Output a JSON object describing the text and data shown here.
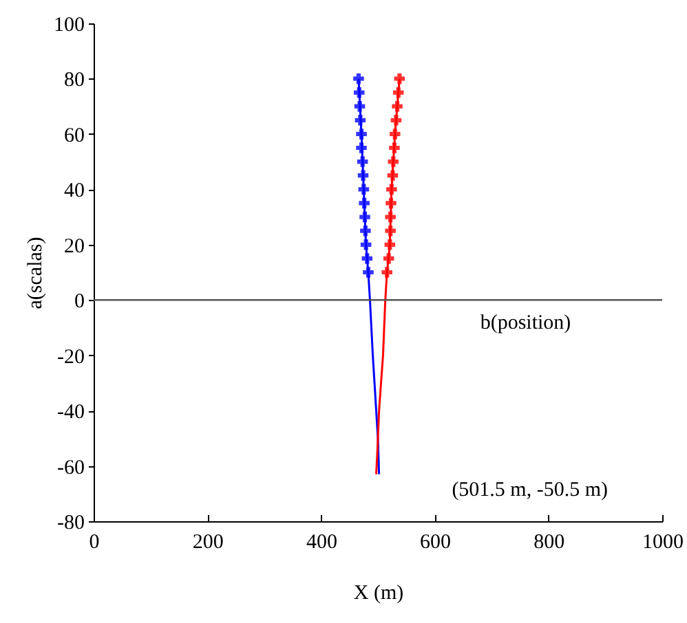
{
  "chart_data": {
    "type": "line",
    "xlabel": "X (m)",
    "ylabel": "a(scalas)",
    "xlim": [
      0,
      1000
    ],
    "xticks": [
      0,
      200,
      400,
      600,
      800,
      1000
    ],
    "ylim": [
      -80,
      100
    ],
    "yticks": [
      -80,
      -60,
      -40,
      -20,
      0,
      20,
      40,
      60,
      80,
      100
    ],
    "grid": false,
    "series": [
      {
        "color": "#0000ff",
        "marker": "none",
        "x": [
          466,
          471,
          475,
          479,
          483,
          486,
          491,
          497,
          500,
          502
        ],
        "values": [
          80,
          60,
          40,
          20,
          10,
          0,
          -20,
          -40,
          -50,
          -63
        ]
      },
      {
        "color": "#ff0000",
        "marker": "none",
        "x": [
          538,
          530,
          524,
          521,
          516,
          513,
          509,
          502,
          499,
          497
        ],
        "values": [
          80,
          60,
          40,
          20,
          10,
          0,
          -20,
          -40,
          -55,
          -63
        ]
      },
      {
        "type": "scatter",
        "color": "#0000ff",
        "marker": "cross",
        "x": [
          466,
          467,
          468,
          469,
          471,
          471,
          473,
          474,
          475,
          476,
          477,
          478,
          479,
          481,
          483
        ],
        "values": [
          80,
          75,
          70,
          65,
          60,
          55,
          50,
          45,
          40,
          35,
          30,
          25,
          20,
          15,
          10
        ]
      },
      {
        "type": "scatter",
        "color": "#ff0000",
        "marker": "cross",
        "x": [
          538,
          536,
          534,
          532,
          530,
          529,
          527,
          526,
          524,
          523,
          522,
          522,
          521,
          519,
          516
        ],
        "values": [
          80,
          75,
          70,
          65,
          60,
          55,
          50,
          45,
          40,
          35,
          30,
          25,
          20,
          15,
          10
        ]
      }
    ],
    "ref_lines": [
      {
        "axis": "y",
        "value": 0,
        "color": "#555555"
      }
    ],
    "annotations": [
      "b(position)",
      "(501.5 m, -50.5 m)"
    ]
  }
}
